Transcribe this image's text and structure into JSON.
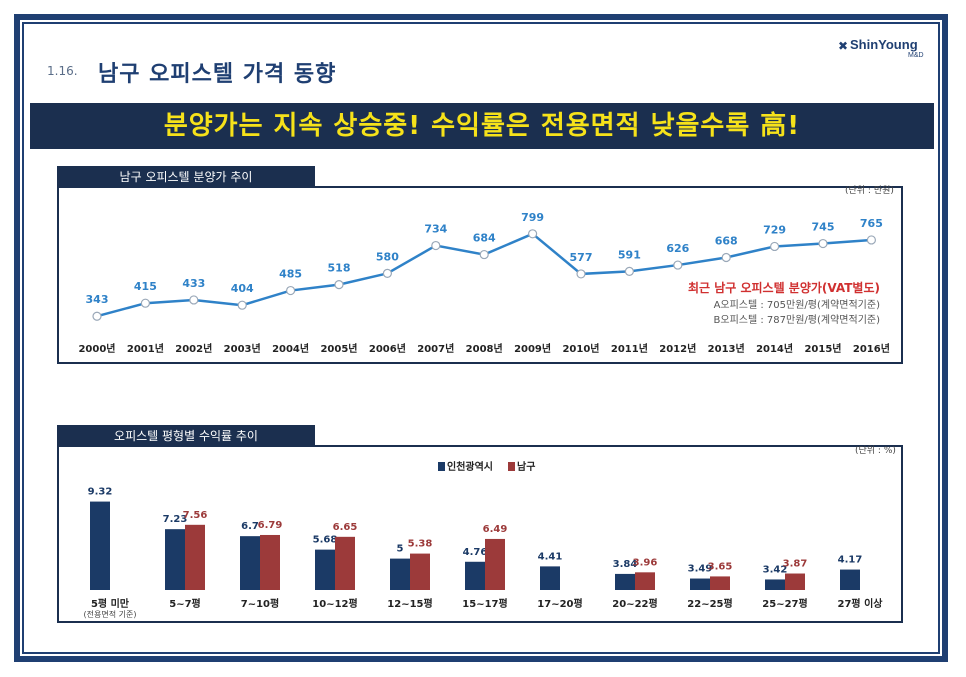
{
  "header": {
    "section_number": "1.16.",
    "title": "남구 오피스텔 가격 동향",
    "logo_name": "ShinYoung",
    "logo_sub": "M&D",
    "banner": "분양가는 지속 상승중! 수익률은 전용면적 낮을수록 高!"
  },
  "chart1_panel": {
    "tab_label": "남구 오피스텔 분양가 추이",
    "unit": "(단위 : 만원)",
    "note_title": "최근 남구 오피스텔 분양가(VAT별도)",
    "note_line1": "A오피스텔 : 705만원/평(계약면적기준)",
    "note_line2": "B오피스텔 : 787만원/평(계약면적기준)"
  },
  "chart2_panel": {
    "tab_label": "오피스텔 평형별 수익률 추이",
    "unit": "(단위 : %)",
    "sub_label": "(전용면적 기준)"
  },
  "colors": {
    "navy": "#1b2f4f",
    "line": "#2f82c8",
    "incheon": "#1b3a66",
    "namgu": "#9c3a3a",
    "note_red": "#d03030",
    "banner_text": "#f6e21a"
  },
  "chart_data": [
    {
      "type": "line",
      "title": "남구 오피스텔 분양가 추이",
      "categories": [
        "2000년",
        "2001년",
        "2002년",
        "2003년",
        "2004년",
        "2005년",
        "2006년",
        "2007년",
        "2008년",
        "2009년",
        "2010년",
        "2011년",
        "2012년",
        "2013년",
        "2014년",
        "2015년",
        "2016년"
      ],
      "values": [
        343,
        415,
        433,
        404,
        485,
        518,
        580,
        734,
        684,
        799,
        577,
        591,
        626,
        668,
        729,
        745,
        765
      ],
      "ylim": [
        300,
        820
      ],
      "grid": false,
      "legend": "none"
    },
    {
      "type": "bar",
      "title": "오피스텔 평형별 수익률 추이",
      "categories": [
        "5평 미만",
        "5~7평",
        "7~10평",
        "10~12평",
        "12~15평",
        "15~17평",
        "17~20평",
        "20~22평",
        "22~25평",
        "25~27평",
        "27평 이상"
      ],
      "series": [
        {
          "name": "인천광역시",
          "values": [
            9.32,
            7.23,
            6.7,
            5.68,
            5,
            4.76,
            4.41,
            3.84,
            3.49,
            3.42,
            4.17
          ]
        },
        {
          "name": "남구",
          "values": [
            null,
            7.56,
            6.79,
            6.65,
            5.38,
            6.49,
            null,
            3.96,
            3.65,
            3.87,
            null
          ]
        }
      ],
      "ylim": [
        3,
        9.5
      ],
      "grid": false,
      "legend": "top-center"
    }
  ]
}
